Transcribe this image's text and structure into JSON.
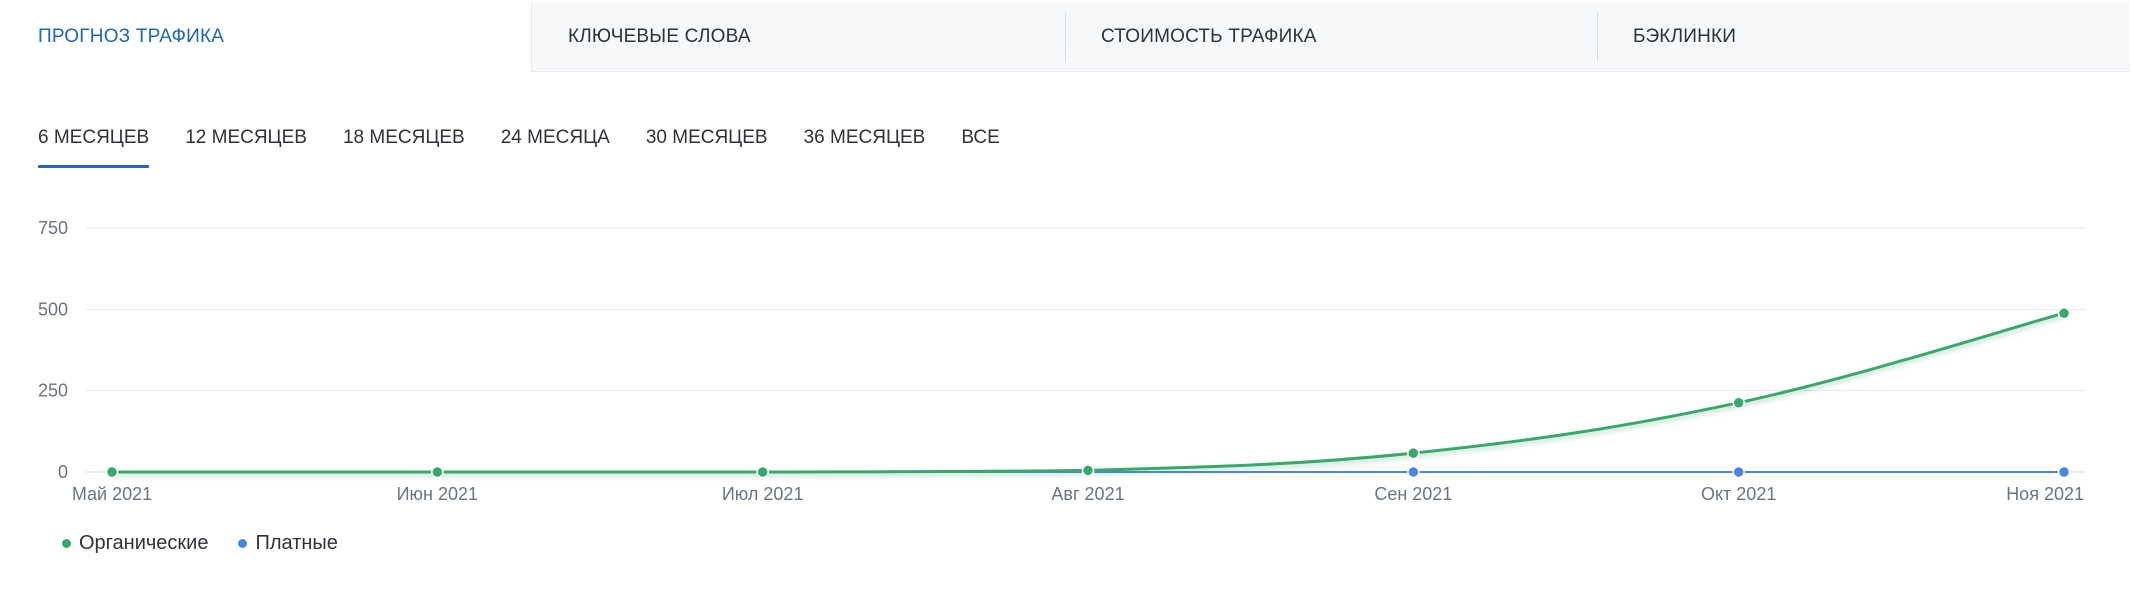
{
  "top_tabs": [
    {
      "label": "ПРОГНОЗ ТРАФИКА",
      "active": true
    },
    {
      "label": "КЛЮЧЕВЫЕ СЛОВА",
      "active": false
    },
    {
      "label": "СТОИМОСТЬ ТРАФИКА",
      "active": false
    },
    {
      "label": "БЭКЛИНКИ",
      "active": false
    }
  ],
  "period_tabs": [
    {
      "label": "6 МЕСЯЦЕВ",
      "active": true
    },
    {
      "label": "12 МЕСЯЦЕВ",
      "active": false
    },
    {
      "label": "18 МЕСЯЦЕВ",
      "active": false
    },
    {
      "label": "24 МЕСЯЦА",
      "active": false
    },
    {
      "label": "30 МЕСЯЦЕВ",
      "active": false
    },
    {
      "label": "36 МЕСЯЦЕВ",
      "active": false
    },
    {
      "label": "ВСЕ",
      "active": false
    }
  ],
  "colors": {
    "accent": "#1f66b3",
    "organic": "#3aa76d",
    "paid": "#4a84dc",
    "grid": "#e6e8eb",
    "axis_text": "#6b7580"
  },
  "chart_data": {
    "type": "line",
    "categories": [
      "Май 2021",
      "Июн 2021",
      "Июл 2021",
      "Авг 2021",
      "Сен 2021",
      "Окт 2021",
      "Ноя 2021"
    ],
    "series": [
      {
        "name": "Органические",
        "color": "#3aa76d",
        "values": [
          0,
          0,
          0,
          5,
          58,
          213,
          488
        ]
      },
      {
        "name": "Платные",
        "color": "#4a84dc",
        "values": [
          0,
          0,
          0,
          0,
          0,
          0,
          0
        ]
      }
    ],
    "yticks": [
      0,
      250,
      500,
      750
    ],
    "ylim": [
      0,
      750
    ],
    "grid": true,
    "legend_position": "bottom-left"
  },
  "legend": [
    {
      "label": "Органические",
      "color": "#3aa76d"
    },
    {
      "label": "Платные",
      "color": "#4a84dc"
    }
  ]
}
